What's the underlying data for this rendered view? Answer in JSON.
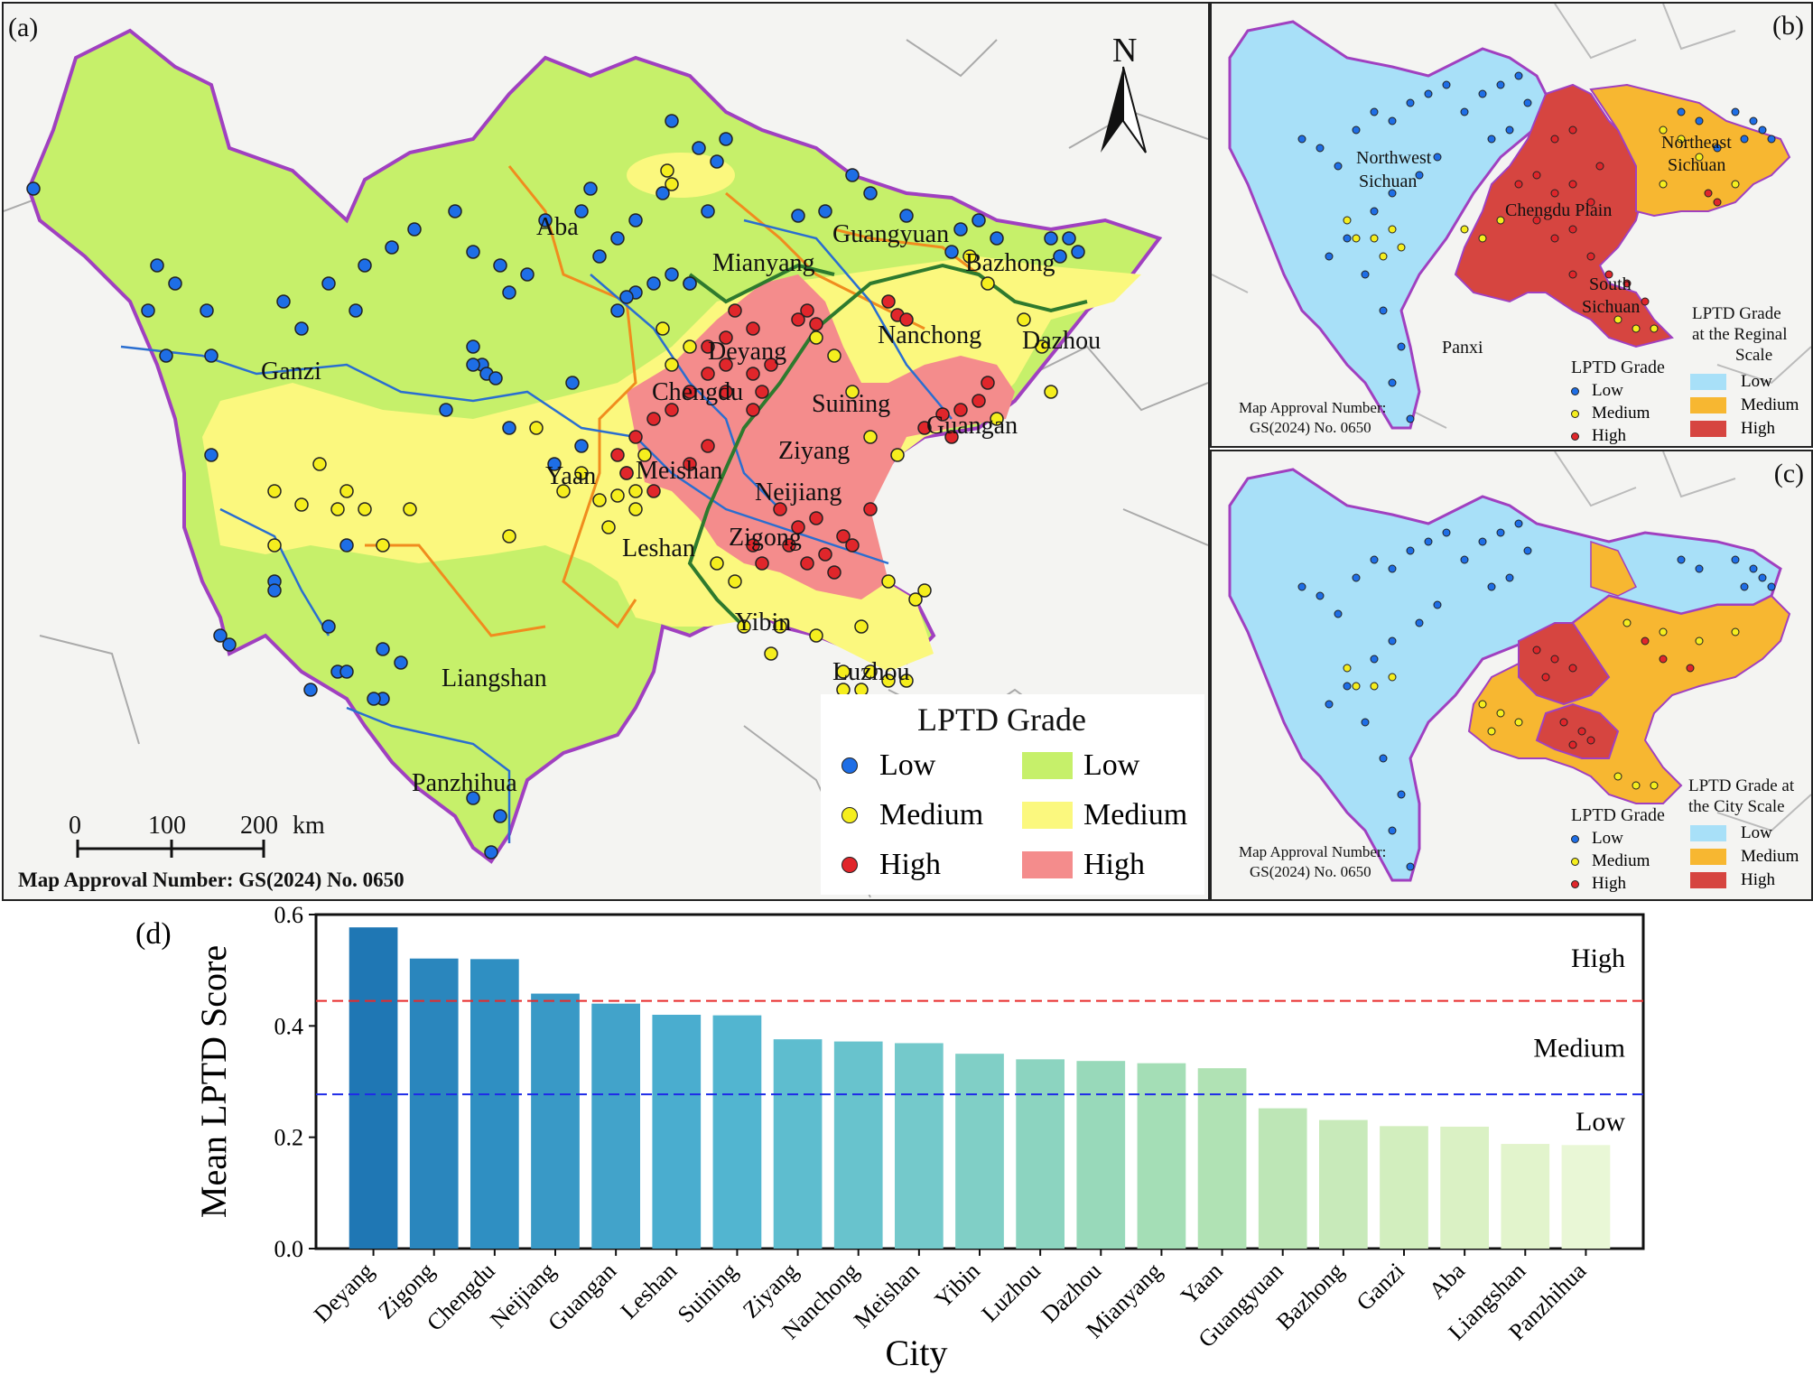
{
  "panel_a": {
    "tag": "(a)",
    "north": "N",
    "cities": [
      "Aba",
      "Ganzi",
      "Mianyang",
      "Guangyuan",
      "Bazhong",
      "Deyang",
      "Nanchong",
      "Dazhou",
      "Chengdu",
      "Suining",
      "Guangan",
      "Yaan",
      "Meishan",
      "Ziyang",
      "Neijiang",
      "Leshan",
      "Zigong",
      "Yibin",
      "Luzhou",
      "Liangshan",
      "Panzhihua"
    ],
    "legend": {
      "title": "LPTD Grade",
      "dot_low": "Low",
      "dot_medium": "Medium",
      "dot_high": "High",
      "area_low": "Low",
      "area_medium": "Medium",
      "area_high": "High"
    },
    "scale": {
      "t0": "0",
      "t1": "100",
      "t2": "200",
      "unit": "km"
    },
    "approval": "Map Approval Number: GS(2024) No. 0650"
  },
  "panel_b": {
    "tag": "(b)",
    "regions": [
      "Northwest",
      "Sichuan",
      "Northeast",
      "Sichuan",
      "Chengdu Plain",
      "South",
      "Sichuan",
      "Panxi"
    ],
    "approval_line1": "Map Approval Number:",
    "approval_line2": "GS(2024) No. 0650",
    "legend_points_title": "LPTD Grade",
    "points": [
      "Low",
      "Medium",
      "High"
    ],
    "legend_area_title1": "LPTD Grade",
    "legend_area_title2": "at the Reginal",
    "legend_area_title3": "Scale",
    "areas": [
      "Low",
      "Medium",
      "High"
    ]
  },
  "panel_c": {
    "tag": "(c)",
    "approval_line1": "Map Approval Number:",
    "approval_line2": "GS(2024) No. 0650",
    "legend_points_title": "LPTD Grade",
    "points": [
      "Low",
      "Medium",
      "High"
    ],
    "legend_area_title1": "LPTD Grade at",
    "legend_area_title2": "the City Scale",
    "areas": [
      "Low",
      "Medium",
      "High"
    ]
  },
  "colors": {
    "dot_low": "#1e6ee6",
    "dot_medium": "#f5ee1e",
    "dot_high": "#e0262b",
    "area_low": "#c6f06a",
    "area_medium": "#fbf87e",
    "area_high": "#f48c8c",
    "reg_low": "#a8e0f8",
    "reg_medium": "#f7b731",
    "reg_high": "#d64540",
    "boundary": "#a040c0",
    "river": "#2a6ed0",
    "road": "#f08c1e",
    "rail": "#2e7a2e"
  },
  "chart_data": {
    "type": "bar",
    "tag": "(d)",
    "title": "",
    "xlabel": "City",
    "ylabel": "Mean LPTD Score",
    "ylim": [
      0,
      0.6
    ],
    "yticks": [
      "0.0",
      "0.2",
      "0.4",
      "0.6"
    ],
    "categories": [
      "Deyang",
      "Zigong",
      "Chengdu",
      "Neijiang",
      "Guangan",
      "Leshan",
      "Suining",
      "Ziyang",
      "Nanchong",
      "Meishan",
      "Yibin",
      "Luzhou",
      "Dazhou",
      "Mianyang",
      "Yaan",
      "Guangyuan",
      "Bazhong",
      "Ganzi",
      "Aba",
      "Liangshan",
      "Panzhihua"
    ],
    "values": [
      0.577,
      0.521,
      0.52,
      0.458,
      0.44,
      0.42,
      0.419,
      0.376,
      0.372,
      0.369,
      0.35,
      0.34,
      0.337,
      0.333,
      0.324,
      0.252,
      0.231,
      0.22,
      0.219,
      0.188,
      0.186
    ],
    "thresholds": [
      {
        "value": 0.445,
        "color": "#e82a2a"
      },
      {
        "value": 0.277,
        "color": "#1e2ae8"
      }
    ],
    "band_labels": [
      "High",
      "Medium",
      "Low"
    ],
    "bar_colors": [
      "#1f77b4",
      "#2a86bd",
      "#2f8fc2",
      "#3999c6",
      "#42a3ca",
      "#4aadcf",
      "#52b5d0",
      "#5ebdcf",
      "#68c3cd",
      "#74c9cb",
      "#80cfc6",
      "#8cd4c0",
      "#98d9ba",
      "#a4deb6",
      "#b0e2b4",
      "#bde6b6",
      "#c8eaba",
      "#d2eebe",
      "#daf1c4",
      "#e2f4cc",
      "#e9f7d6"
    ]
  }
}
